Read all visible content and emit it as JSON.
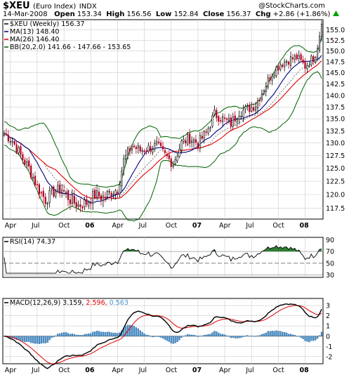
{
  "header": {
    "symbol": "$XEU",
    "name": "(Euro Index)",
    "exchange": "INDX",
    "copyright": "@StockCharts.com",
    "date": "14-Mar-2008",
    "open_label": "Open",
    "open": "153.34",
    "high_label": "High",
    "high": "156.56",
    "low_label": "Low",
    "low": "152.84",
    "close_label": "Close",
    "close": "156.37",
    "chg_label": "Chg",
    "chg": "+2.86 (+1.86%)",
    "up_arrow_icon": "up-triangle-icon"
  },
  "colors": {
    "price": "#000000",
    "ma13": "#000080",
    "ma26": "#e00000",
    "bb": "#006400",
    "bb_mid": "#555555",
    "up": "#000000",
    "down": "#b00020",
    "rsi": "#000000",
    "rsi_fill": "#2e7d32",
    "macd": "#000000",
    "signal": "#e00000",
    "hist": "#4a90c8",
    "grid": "#cccccc"
  },
  "chart_data": [
    {
      "type": "candlestick",
      "panel": "price",
      "legend": [
        {
          "label": "$XEU (Weekly) 156.37"
        },
        {
          "label": "MA(13) 148.40"
        },
        {
          "label": "MA(26) 146.40"
        },
        {
          "label": "BB(20,2.0) 141.66 - 147.66 - 153.65"
        }
      ],
      "x_ticks": [
        "Apr",
        "Jul",
        "Oct",
        "06",
        "Apr",
        "Jul",
        "Oct",
        "07",
        "Apr",
        "Jul",
        "Oct",
        "08"
      ],
      "y_ticks": [
        117.5,
        120.0,
        122.5,
        125.0,
        127.5,
        130.0,
        132.5,
        135.0,
        137.5,
        140.0,
        142.5,
        145.0,
        147.5,
        150.0,
        152.5,
        155.0
      ],
      "ylim": [
        115.5,
        157.5
      ],
      "scale": "log",
      "grid": true,
      "weeks": 155,
      "close_anchors": [
        [
          0,
          132.0
        ],
        [
          4,
          130.5
        ],
        [
          8,
          127.5
        ],
        [
          12,
          125.0
        ],
        [
          16,
          121.5
        ],
        [
          20,
          119.0
        ],
        [
          24,
          120.5
        ],
        [
          28,
          121.0
        ],
        [
          32,
          119.0
        ],
        [
          36,
          118.0
        ],
        [
          40,
          118.5
        ],
        [
          44,
          120.0
        ],
        [
          48,
          119.5
        ],
        [
          52,
          120.5
        ],
        [
          55,
          121.0
        ],
        [
          58,
          126.5
        ],
        [
          62,
          129.5
        ],
        [
          66,
          128.5
        ],
        [
          70,
          129.0
        ],
        [
          74,
          129.5
        ],
        [
          78,
          127.5
        ],
        [
          82,
          126.0
        ],
        [
          86,
          130.0
        ],
        [
          90,
          131.0
        ],
        [
          94,
          130.0
        ],
        [
          98,
          132.0
        ],
        [
          102,
          136.0
        ],
        [
          106,
          135.0
        ],
        [
          110,
          134.0
        ],
        [
          114,
          136.5
        ],
        [
          118,
          137.0
        ],
        [
          122,
          138.0
        ],
        [
          126,
          141.5
        ],
        [
          130,
          145.0
        ],
        [
          134,
          147.0
        ],
        [
          138,
          148.0
        ],
        [
          142,
          148.5
        ],
        [
          146,
          146.5
        ],
        [
          150,
          148.5
        ],
        [
          152,
          150.5
        ],
        [
          153,
          153.5
        ],
        [
          154,
          156.37
        ]
      ]
    },
    {
      "type": "line",
      "panel": "rsi",
      "legend": [
        {
          "label": "RSI(14) 74.37"
        }
      ],
      "y_ticks": [
        30,
        50,
        70,
        90
      ],
      "ylim": [
        26,
        94
      ],
      "reference_lines": [
        30,
        50,
        70
      ],
      "last": 74.37
    },
    {
      "type": "line",
      "panel": "macd",
      "legend": [
        {
          "label": "MACD(12,26,9)",
          "value": "3.159"
        },
        {
          "label": "signal",
          "value": "2.596"
        },
        {
          "label": "histogram",
          "value": "0.563"
        }
      ],
      "y_ticks": [
        3,
        2,
        1,
        0,
        -1,
        -2
      ],
      "ylim": [
        -2.7,
        3.7
      ],
      "x_ticks": [
        "Apr",
        "Jul",
        "Oct",
        "06",
        "Apr",
        "Jul",
        "Oct",
        "07",
        "Apr",
        "Jul",
        "Oct",
        "08"
      ]
    }
  ]
}
